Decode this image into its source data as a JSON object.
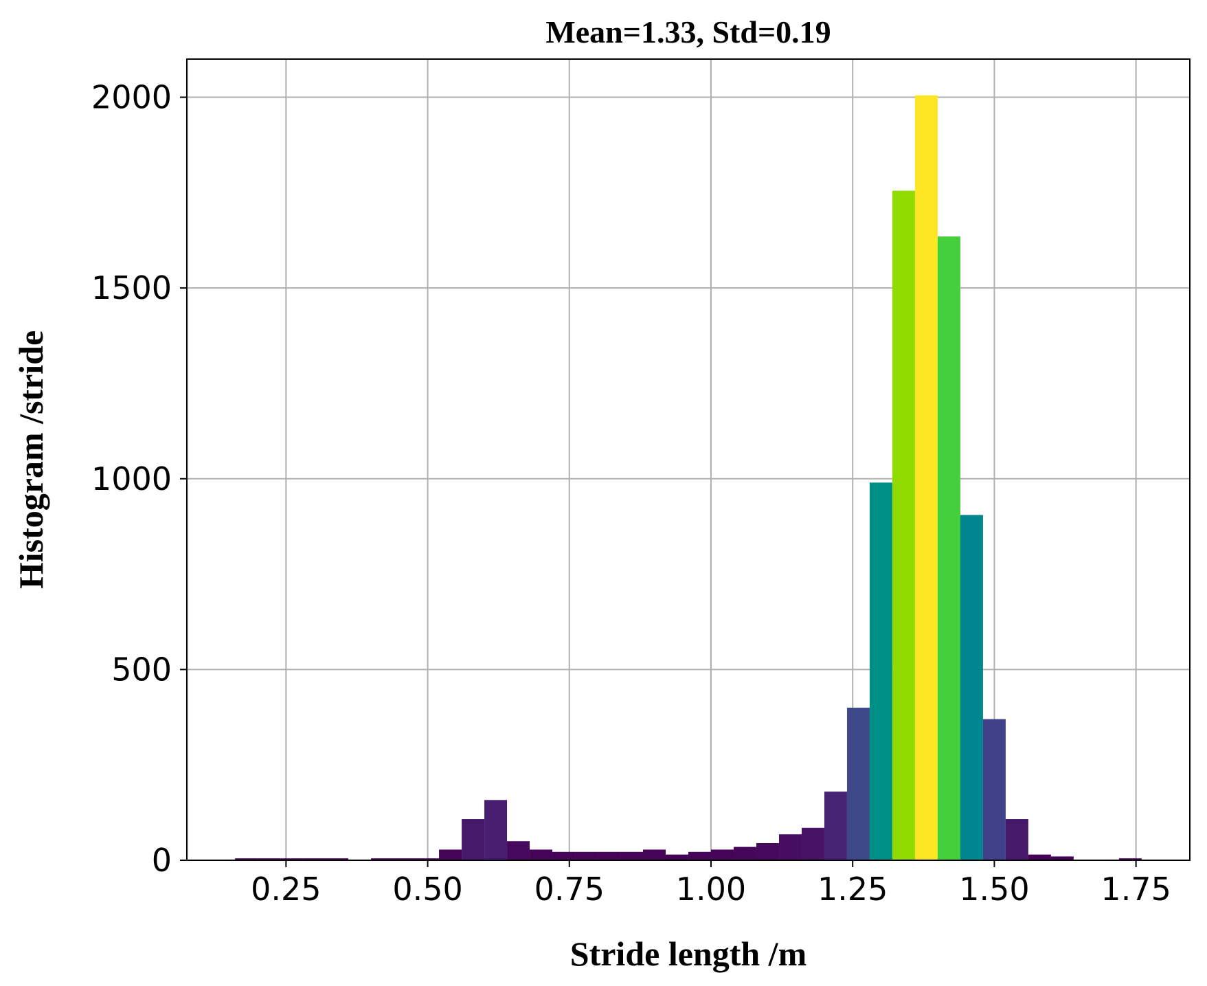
{
  "chart_data": {
    "type": "bar",
    "title": "Mean=1.33, Std=0.19",
    "xlabel": "Stride length /m",
    "ylabel": "Histogram /stride",
    "xlim": [
      0.075,
      1.845
    ],
    "ylim": [
      0,
      2100
    ],
    "xticks": [
      0.25,
      0.5,
      0.75,
      1.0,
      1.25,
      1.5,
      1.75
    ],
    "xtick_labels": [
      "0.25",
      "0.50",
      "0.75",
      "1.00",
      "1.25",
      "1.50",
      "1.75"
    ],
    "yticks": [
      0,
      500,
      1000,
      1500,
      2000
    ],
    "ytick_labels": [
      "0",
      "500",
      "1000",
      "1500",
      "2000"
    ],
    "grid": true,
    "colormap": "viridis",
    "bins": [
      {
        "x0": 0.16,
        "x1": 0.2,
        "value": 5,
        "color": "#440154"
      },
      {
        "x0": 0.2,
        "x1": 0.24,
        "value": 5,
        "color": "#440154"
      },
      {
        "x0": 0.24,
        "x1": 0.28,
        "value": 5,
        "color": "#440154"
      },
      {
        "x0": 0.28,
        "x1": 0.32,
        "value": 5,
        "color": "#440154"
      },
      {
        "x0": 0.32,
        "x1": 0.36,
        "value": 5,
        "color": "#440154"
      },
      {
        "x0": 0.4,
        "x1": 0.44,
        "value": 5,
        "color": "#440154"
      },
      {
        "x0": 0.44,
        "x1": 0.48,
        "value": 5,
        "color": "#440154"
      },
      {
        "x0": 0.48,
        "x1": 0.52,
        "value": 5,
        "color": "#440154"
      },
      {
        "x0": 0.52,
        "x1": 0.56,
        "value": 28,
        "color": "#450457"
      },
      {
        "x0": 0.56,
        "x1": 0.6,
        "value": 108,
        "color": "#48186a"
      },
      {
        "x0": 0.6,
        "x1": 0.64,
        "value": 158,
        "color": "#481f70"
      },
      {
        "x0": 0.64,
        "x1": 0.68,
        "value": 50,
        "color": "#46085c"
      },
      {
        "x0": 0.68,
        "x1": 0.72,
        "value": 28,
        "color": "#450457"
      },
      {
        "x0": 0.72,
        "x1": 0.76,
        "value": 22,
        "color": "#450457"
      },
      {
        "x0": 0.76,
        "x1": 0.8,
        "value": 22,
        "color": "#450457"
      },
      {
        "x0": 0.8,
        "x1": 0.84,
        "value": 22,
        "color": "#450457"
      },
      {
        "x0": 0.84,
        "x1": 0.88,
        "value": 22,
        "color": "#450457"
      },
      {
        "x0": 0.88,
        "x1": 0.92,
        "value": 28,
        "color": "#450457"
      },
      {
        "x0": 0.92,
        "x1": 0.96,
        "value": 15,
        "color": "#440256"
      },
      {
        "x0": 0.96,
        "x1": 1.0,
        "value": 22,
        "color": "#450457"
      },
      {
        "x0": 1.0,
        "x1": 1.04,
        "value": 28,
        "color": "#450457"
      },
      {
        "x0": 1.04,
        "x1": 1.08,
        "value": 35,
        "color": "#46075a"
      },
      {
        "x0": 1.08,
        "x1": 1.12,
        "value": 45,
        "color": "#46085c"
      },
      {
        "x0": 1.12,
        "x1": 1.16,
        "value": 68,
        "color": "#470d60"
      },
      {
        "x0": 1.16,
        "x1": 1.2,
        "value": 85,
        "color": "#471365"
      },
      {
        "x0": 1.2,
        "x1": 1.24,
        "value": 180,
        "color": "#482475"
      },
      {
        "x0": 1.24,
        "x1": 1.28,
        "value": 400,
        "color": "#3e4989"
      },
      {
        "x0": 1.28,
        "x1": 1.32,
        "value": 990,
        "color": "#008f86"
      },
      {
        "x0": 1.32,
        "x1": 1.36,
        "value": 1755,
        "color": "#91db00"
      },
      {
        "x0": 1.36,
        "x1": 1.4,
        "value": 2005,
        "color": "#fde725"
      },
      {
        "x0": 1.4,
        "x1": 1.44,
        "value": 1635,
        "color": "#44d03c"
      },
      {
        "x0": 1.44,
        "x1": 1.48,
        "value": 905,
        "color": "#00868f"
      },
      {
        "x0": 1.48,
        "x1": 1.52,
        "value": 370,
        "color": "#41418a"
      },
      {
        "x0": 1.52,
        "x1": 1.56,
        "value": 108,
        "color": "#48186a"
      },
      {
        "x0": 1.56,
        "x1": 1.6,
        "value": 15,
        "color": "#440256"
      },
      {
        "x0": 1.6,
        "x1": 1.64,
        "value": 10,
        "color": "#440256"
      },
      {
        "x0": 1.72,
        "x1": 1.76,
        "value": 5,
        "color": "#440154"
      }
    ]
  }
}
